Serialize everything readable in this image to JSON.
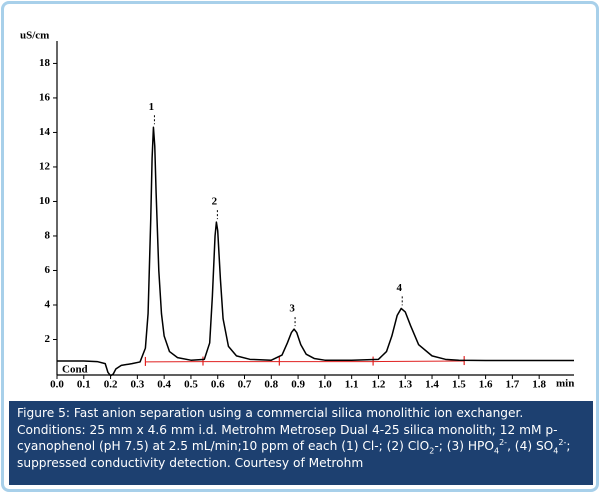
{
  "chart_data": {
    "type": "line",
    "y_label": "uS/cm",
    "x_label": "min",
    "trace_label": "Cond",
    "xlim": [
      0,
      1.93
    ],
    "ylim": [
      0,
      19.3
    ],
    "xticks": [
      {
        "value": 0,
        "label": "0.0"
      },
      0.1,
      0.2,
      0.3,
      0.4,
      0.5,
      0.6,
      0.7,
      0.8,
      0.9,
      {
        "value": 1,
        "label": "1.0"
      },
      1.1,
      1.2,
      1.3,
      1.4,
      1.5,
      1.6,
      1.7,
      1.8
    ],
    "yticks": [
      2,
      4,
      6,
      8,
      10,
      12,
      14,
      16,
      18
    ],
    "color": "#000000",
    "x": [
      0,
      0.05,
      0.1,
      0.15,
      0.18,
      0.19,
      0.2,
      0.21,
      0.22,
      0.24,
      0.28,
      0.31,
      0.33,
      0.34,
      0.35,
      0.355,
      0.36,
      0.365,
      0.37,
      0.38,
      0.39,
      0.4,
      0.42,
      0.45,
      0.5,
      0.55,
      0.57,
      0.58,
      0.59,
      0.595,
      0.6,
      0.61,
      0.62,
      0.64,
      0.67,
      0.72,
      0.8,
      0.84,
      0.86,
      0.875,
      0.885,
      0.895,
      0.91,
      0.93,
      0.96,
      1.0,
      1.1,
      1.2,
      1.23,
      1.25,
      1.27,
      1.285,
      1.3,
      1.32,
      1.35,
      1.4,
      1.45,
      1.5,
      1.6,
      1.93
    ],
    "values": [
      0.75,
      0.75,
      0.75,
      0.72,
      0.6,
      0.1,
      -0.1,
      0.0,
      0.3,
      0.5,
      0.6,
      0.7,
      1.5,
      3.5,
      9,
      12.5,
      14.3,
      13.2,
      10.5,
      6,
      3.5,
      2.2,
      1.3,
      0.95,
      0.8,
      0.85,
      1.8,
      4.5,
      8.0,
      8.8,
      8.3,
      5.5,
      3.2,
      1.6,
      1.05,
      0.85,
      0.8,
      1.1,
      1.8,
      2.4,
      2.6,
      2.4,
      1.7,
      1.15,
      0.9,
      0.8,
      0.8,
      0.85,
      1.3,
      2.2,
      3.4,
      3.8,
      3.6,
      2.8,
      1.7,
      1.05,
      0.85,
      0.8,
      0.78,
      0.78
    ],
    "integration": {
      "color": "#e02020",
      "x": [
        0.33,
        0.545,
        0.83,
        1.18,
        1.52
      ],
      "values": [
        0.7,
        0.72,
        0.72,
        0.72,
        0.75
      ]
    },
    "annotations": [
      {
        "text": "1",
        "x": 0.36,
        "y": 14.3
      },
      {
        "text": "2",
        "x": 0.595,
        "y": 8.8
      },
      {
        "text": "3",
        "x": 0.885,
        "y": 2.6
      },
      {
        "text": "4",
        "x": 1.285,
        "y": 3.8
      }
    ]
  },
  "caption": {
    "heading": "Figure 5: Fast anion separation using a commercial silica monolithic ion exchanger.",
    "parts": [
      {
        "text": "Conditions: 25 mm x 4.6 mm i.d. Metrohm Metrosep Dual 4-25 silica monolith; 12 mM p-cyanophenol (pH 7.5) at 2.5 mL/min;10 ppm of each (1) Cl-; (2) ClO"
      },
      {
        "sub": "2"
      },
      {
        "text": "-; (3) HPO"
      },
      {
        "sub": "4"
      },
      {
        "sup": "2-"
      },
      {
        "text": ", (4) SO"
      },
      {
        "sub": "4"
      },
      {
        "sup": "2-"
      },
      {
        "text": "; suppressed conductivity detection.  Courtesy of Metrohm"
      }
    ]
  }
}
